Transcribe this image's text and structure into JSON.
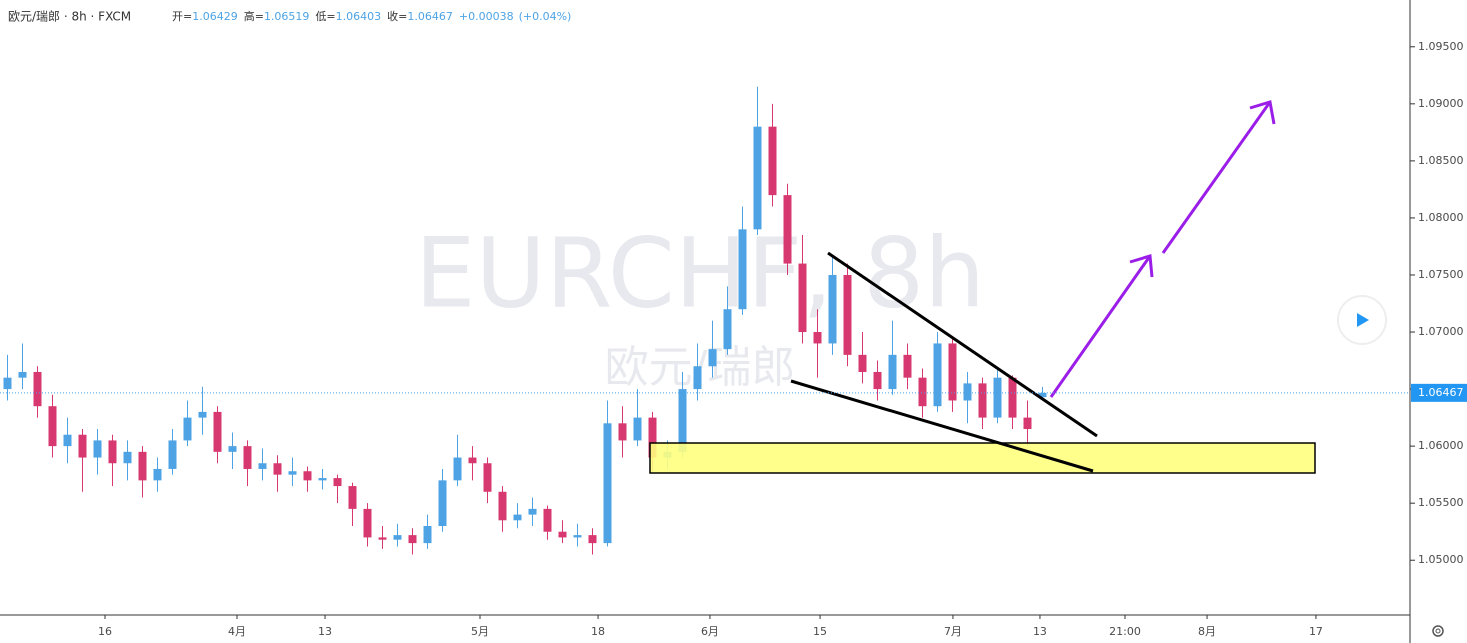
{
  "chart_data": {
    "type": "candlestick",
    "title": "欧元/瑞郎 · 8h · FXCM",
    "ohlc_labels": [
      "开=",
      "高=",
      "低=",
      "收="
    ],
    "change": "+0.00038",
    "change_pct": "(+0.04%)",
    "watermark": "EURCHF, 8h",
    "watermark_sub": "欧元/瑞郎",
    "up_color": "#4da3e4",
    "down_color": "#d7386f",
    "ylim": [
      1.0452,
      1.0991
    ],
    "yticks": [
      {
        "value": 1.05,
        "label": "1.05000"
      },
      {
        "value": 1.055,
        "label": "1.05500"
      },
      {
        "value": 1.06,
        "label": "1.06000"
      },
      {
        "value": 1.065,
        "label": "1.06500"
      },
      {
        "value": 1.07,
        "label": "1.07000"
      },
      {
        "value": 1.075,
        "label": "1.07500"
      },
      {
        "value": 1.08,
        "label": "1.08000"
      },
      {
        "value": 1.085,
        "label": "1.08500"
      },
      {
        "value": 1.09,
        "label": "1.09000"
      },
      {
        "value": 1.095,
        "label": "1.09500"
      }
    ],
    "xlim": [
      0,
      94
    ],
    "xticks": [
      {
        "value": 7,
        "label": "16"
      },
      {
        "value": 15.8,
        "label": "4月"
      },
      {
        "value": 21.67,
        "label": "13"
      },
      {
        "value": 32,
        "label": "5月"
      },
      {
        "value": 39.87,
        "label": "18"
      },
      {
        "value": 47.33,
        "label": "6月"
      },
      {
        "value": 54.67,
        "label": "15"
      },
      {
        "value": 63.53,
        "label": "7月"
      },
      {
        "value": 69.33,
        "label": "13"
      },
      {
        "value": 75,
        "label": "21:00"
      },
      {
        "value": 80.47,
        "label": "8月"
      },
      {
        "value": 87.73,
        "label": "17"
      }
    ],
    "candles": [
      [
        1.065,
        1.068,
        1.064,
        1.066
      ],
      [
        1.066,
        1.069,
        1.065,
        1.0665
      ],
      [
        1.0665,
        1.067,
        1.0625,
        1.0635
      ],
      [
        1.0635,
        1.0645,
        1.059,
        1.06
      ],
      [
        1.06,
        1.0625,
        1.0585,
        1.061
      ],
      [
        1.061,
        1.0615,
        1.056,
        1.059
      ],
      [
        1.059,
        1.0615,
        1.0575,
        1.0605
      ],
      [
        1.0605,
        1.061,
        1.0565,
        1.0585
      ],
      [
        1.0585,
        1.0605,
        1.057,
        1.0595
      ],
      [
        1.0595,
        1.06,
        1.0555,
        1.057
      ],
      [
        1.057,
        1.059,
        1.056,
        1.058
      ],
      [
        1.058,
        1.0615,
        1.0575,
        1.0605
      ],
      [
        1.0605,
        1.064,
        1.06,
        1.0625
      ],
      [
        1.0625,
        1.0652,
        1.061,
        1.063
      ],
      [
        1.063,
        1.0635,
        1.0585,
        1.0595
      ],
      [
        1.0595,
        1.0612,
        1.058,
        1.06
      ],
      [
        1.06,
        1.0605,
        1.0565,
        1.058
      ],
      [
        1.058,
        1.0598,
        1.057,
        1.0585
      ],
      [
        1.0585,
        1.0592,
        1.056,
        1.0575
      ],
      [
        1.0575,
        1.059,
        1.0565,
        1.0578
      ],
      [
        1.0578,
        1.0582,
        1.056,
        1.057
      ],
      [
        1.057,
        1.058,
        1.0562,
        1.0572
      ],
      [
        1.0572,
        1.0575,
        1.055,
        1.0565
      ],
      [
        1.0565,
        1.0568,
        1.053,
        1.0545
      ],
      [
        1.0545,
        1.055,
        1.0512,
        1.052
      ],
      [
        1.052,
        1.053,
        1.051,
        1.0518
      ],
      [
        1.0518,
        1.0532,
        1.0512,
        1.0522
      ],
      [
        1.0522,
        1.0528,
        1.0505,
        1.0515
      ],
      [
        1.0515,
        1.054,
        1.051,
        1.053
      ],
      [
        1.053,
        1.058,
        1.0525,
        1.057
      ],
      [
        1.057,
        1.061,
        1.0565,
        1.059
      ],
      [
        1.059,
        1.06,
        1.057,
        1.0585
      ],
      [
        1.0585,
        1.059,
        1.055,
        1.056
      ],
      [
        1.056,
        1.0565,
        1.0525,
        1.0535
      ],
      [
        1.0535,
        1.055,
        1.0528,
        1.054
      ],
      [
        1.054,
        1.0555,
        1.053,
        1.0545
      ],
      [
        1.0545,
        1.0548,
        1.0518,
        1.0525
      ],
      [
        1.0525,
        1.0535,
        1.0515,
        1.052
      ],
      [
        1.052,
        1.0532,
        1.0512,
        1.0522
      ],
      [
        1.0522,
        1.0528,
        1.0505,
        1.0515
      ],
      [
        1.0515,
        1.064,
        1.0512,
        1.062
      ],
      [
        1.062,
        1.0635,
        1.059,
        1.0605
      ],
      [
        1.0605,
        1.065,
        1.06,
        1.0625
      ],
      [
        1.0625,
        1.063,
        1.0578,
        1.059
      ],
      [
        1.059,
        1.0605,
        1.058,
        1.0595
      ],
      [
        1.0595,
        1.0665,
        1.059,
        1.065
      ],
      [
        1.065,
        1.069,
        1.064,
        1.067
      ],
      [
        1.067,
        1.071,
        1.066,
        1.0685
      ],
      [
        1.0685,
        1.074,
        1.068,
        1.072
      ],
      [
        1.072,
        1.081,
        1.0715,
        1.079
      ],
      [
        1.079,
        1.0915,
        1.0785,
        1.088
      ],
      [
        1.088,
        1.09,
        1.081,
        1.082
      ],
      [
        1.082,
        1.083,
        1.075,
        1.076
      ],
      [
        1.076,
        1.0785,
        1.069,
        1.07
      ],
      [
        1.07,
        1.072,
        1.066,
        1.069
      ],
      [
        1.069,
        1.0768,
        1.068,
        1.075
      ],
      [
        1.075,
        1.076,
        1.067,
        1.068
      ],
      [
        1.068,
        1.07,
        1.0655,
        1.0665
      ],
      [
        1.0665,
        1.0675,
        1.064,
        1.065
      ],
      [
        1.065,
        1.071,
        1.0645,
        1.068
      ],
      [
        1.068,
        1.069,
        1.065,
        1.066
      ],
      [
        1.066,
        1.0668,
        1.0625,
        1.0635
      ],
      [
        1.0635,
        1.07,
        1.063,
        1.069
      ],
      [
        1.069,
        1.0695,
        1.063,
        1.064
      ],
      [
        1.064,
        1.0665,
        1.062,
        1.0655
      ],
      [
        1.0655,
        1.066,
        1.0615,
        1.0625
      ],
      [
        1.0625,
        1.0668,
        1.062,
        1.066
      ],
      [
        1.066,
        1.0662,
        1.0615,
        1.0625
      ],
      [
        1.0625,
        1.064,
        1.06,
        1.0615
      ],
      [
        1.06429,
        1.06519,
        1.06403,
        1.06467
      ]
    ]
  }
}
